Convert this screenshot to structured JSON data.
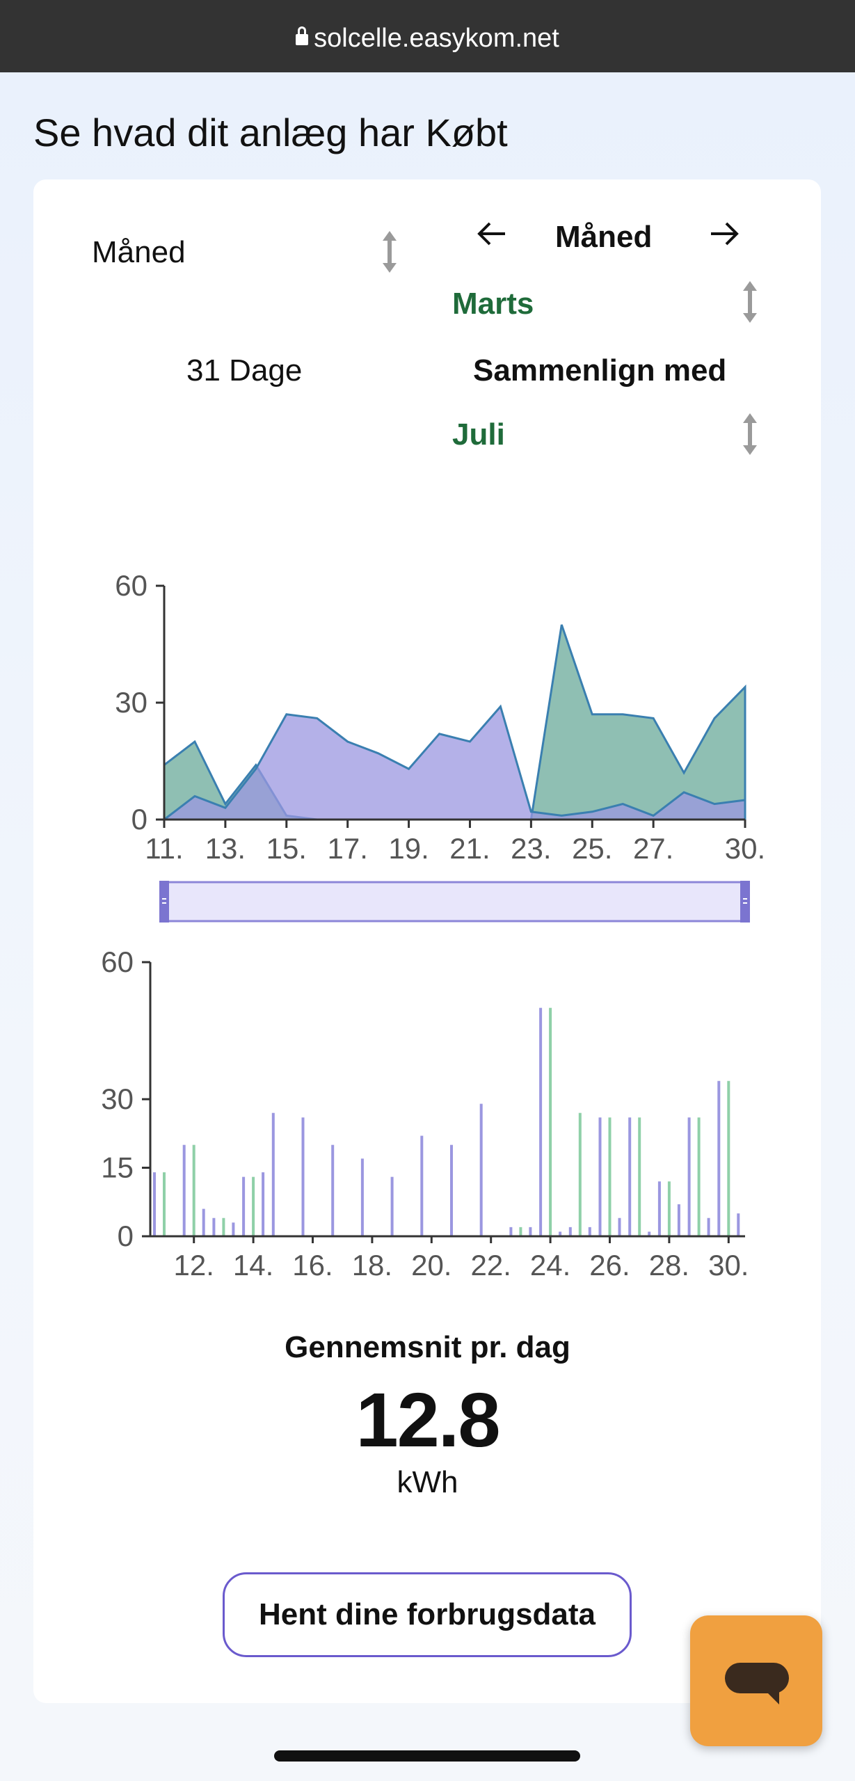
{
  "browser": {
    "url": "solcelle.easykom.net"
  },
  "page": {
    "title": "Se hvad dit anlæg har Købt"
  },
  "controls": {
    "period_select": "Måned",
    "period_nav_label": "Måned",
    "period_nav_prev_icon": "arrow-left-icon",
    "period_nav_next_icon": "arrow-right-icon",
    "selected_period": "Marts",
    "days_label": "31 Dage",
    "compare_label": "Sammenlign med",
    "compare_period": "Juli",
    "accent_green": "#1f6b3a"
  },
  "chart_data": [
    {
      "type": "area",
      "x": [
        "11.",
        "12.",
        "13.",
        "14.",
        "15.",
        "16.",
        "17.",
        "18.",
        "19.",
        "20.",
        "21.",
        "22.",
        "23.",
        "24.",
        "25.",
        "26.",
        "27.",
        "28.",
        "29.",
        "30."
      ],
      "x_tick_labels": [
        "11.",
        "13.",
        "15.",
        "17.",
        "19.",
        "21.",
        "23.",
        "25.",
        "27.",
        "30."
      ],
      "ylim": [
        0,
        60
      ],
      "y_ticks": [
        0,
        30,
        60
      ],
      "series": [
        {
          "color": "#6aaa9a",
          "values": [
            14,
            20,
            4,
            14,
            1,
            0,
            0,
            0,
            0,
            0,
            0,
            0,
            0,
            50,
            27,
            27,
            26,
            12,
            26,
            34
          ]
        },
        {
          "color": "#9b97e0",
          "values": [
            0,
            6,
            3,
            13,
            27,
            26,
            20,
            17,
            13,
            22,
            20,
            29,
            2,
            1,
            2,
            4,
            1,
            7,
            4,
            5
          ]
        }
      ],
      "grid": false,
      "brush_range": [
        "11.",
        "30."
      ]
    },
    {
      "type": "bar",
      "x": [
        "11.",
        "12.",
        "13.",
        "14.",
        "15.",
        "16.",
        "17.",
        "18.",
        "19.",
        "20.",
        "21.",
        "22.",
        "23.",
        "24.",
        "25.",
        "26.",
        "27.",
        "28.",
        "29.",
        "30."
      ],
      "x_tick_labels": [
        "12.",
        "14.",
        "16.",
        "18.",
        "20.",
        "22.",
        "24.",
        "26.",
        "28.",
        "30."
      ],
      "ylim": [
        0,
        60
      ],
      "y_ticks": [
        0,
        15,
        30,
        60
      ],
      "series": [
        {
          "color": "#9b97e0",
          "values": [
            14,
            20,
            4,
            13,
            27,
            26,
            20,
            17,
            13,
            22,
            20,
            29,
            2,
            50,
            2,
            26,
            26,
            12,
            26,
            34
          ]
        },
        {
          "color": "#8fd0a8",
          "values": [
            14,
            20,
            4,
            13,
            0,
            0,
            0,
            0,
            0,
            0,
            0,
            0,
            2,
            50,
            27,
            26,
            26,
            12,
            26,
            34
          ]
        },
        {
          "color": "#9b97e0",
          "values": [
            0,
            6,
            3,
            14,
            0,
            0,
            0,
            0,
            0,
            0,
            0,
            0,
            2,
            1,
            2,
            4,
            1,
            7,
            4,
            5
          ]
        }
      ],
      "grid": false
    }
  ],
  "summary": {
    "label": "Gennemsnit pr. dag",
    "value": "12.8",
    "unit": "kWh"
  },
  "actions": {
    "fetch_label": "Hent dine forbrugsdata",
    "chat_icon": "chat-bubble-icon",
    "chat_color": "#f0a040"
  }
}
